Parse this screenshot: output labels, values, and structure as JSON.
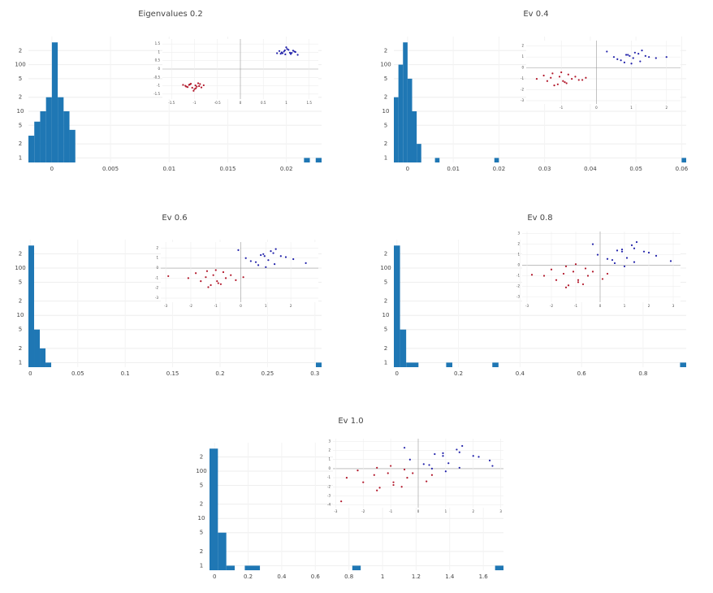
{
  "chart_data": [
    {
      "type": "histogram",
      "title": "Eigenvalues 0.2",
      "log_y": true,
      "grid": true,
      "color": "#1f77b4",
      "bins": [
        -0.002,
        -0.0015,
        -0.001,
        -0.0005,
        0,
        0.0005,
        0.001,
        0.0015,
        0.002,
        0.0215,
        0.022,
        0.0225,
        0.023
      ],
      "counts": [
        3,
        6,
        10,
        20,
        300,
        20,
        10,
        4,
        0,
        1,
        0,
        1
      ],
      "xlim": [
        -0.002,
        0.023
      ],
      "xticks": [
        0,
        0.005,
        0.01,
        0.015,
        0.02
      ],
      "ylim": [
        0.8,
        400
      ],
      "yticks": [
        1,
        2,
        5,
        10,
        {
          "value": 20,
          "label": "2"
        },
        {
          "value": 50,
          "label": "5"
        },
        100,
        {
          "value": 200,
          "label": "2"
        }
      ],
      "inset": {
        "type": "scatter",
        "grid": true,
        "xlim": [
          -1.7,
          1.7
        ],
        "ylim": [
          -1.8,
          1.8
        ],
        "xticks": [
          -1.5,
          -1,
          -0.5,
          0,
          0.5,
          1,
          1.5
        ],
        "yticks": [
          -1.5,
          -1,
          -0.5,
          0,
          0.5,
          1,
          1.5
        ],
        "series": [
          {
            "color": "#b2182b",
            "x": [
              -1.12,
              -0.95,
              -1.05,
              -0.88,
              -1.2,
              -1.0,
              -0.92,
              -1.15,
              -0.98,
              -1.08,
              -0.85,
              -1.25,
              -1.02,
              -0.9,
              -1.1,
              -0.97,
              -1.18,
              -0.8
            ],
            "y": [
              -0.95,
              -1.05,
              -1.12,
              -0.9,
              -1.0,
              -1.2,
              -0.85,
              -1.08,
              -0.98,
              -0.88,
              -1.1,
              -0.95,
              -1.3,
              -1.02,
              -0.92,
              -1.15,
              -1.05,
              -0.97
            ]
          },
          {
            "color": "#2222aa",
            "x": [
              1.12,
              0.95,
              1.05,
              0.88,
              1.2,
              1.0,
              0.92,
              1.15,
              0.98,
              1.08,
              0.85,
              1.25,
              1.02,
              0.9,
              1.1,
              0.97,
              1.18,
              0.8
            ],
            "y": [
              0.97,
              1.05,
              1.15,
              0.92,
              1.02,
              1.3,
              0.95,
              1.1,
              0.88,
              0.98,
              1.08,
              0.85,
              1.2,
              1.0,
              0.9,
              1.12,
              1.05,
              0.95
            ]
          }
        ]
      }
    },
    {
      "type": "histogram",
      "title": "Ev 0.4",
      "log_y": true,
      "grid": true,
      "color": "#1f77b4",
      "bins": [
        -0.003,
        -0.002,
        -0.001,
        0,
        0.001,
        0.002,
        0.003,
        0.006,
        0.007,
        0.019,
        0.02,
        0.06,
        0.061
      ],
      "counts": [
        20,
        100,
        300,
        50,
        10,
        2,
        0,
        1,
        0,
        1,
        0,
        1
      ],
      "xlim": [
        -0.003,
        0.061
      ],
      "xticks": [
        0,
        0.01,
        0.02,
        0.03,
        0.04,
        0.05,
        0.06
      ],
      "ylim": [
        0.8,
        400
      ],
      "yticks": [
        1,
        2,
        5,
        10,
        {
          "value": 20,
          "label": "2"
        },
        {
          "value": 50,
          "label": "5"
        },
        100,
        {
          "value": 200,
          "label": "2"
        }
      ],
      "inset": {
        "type": "scatter",
        "grid": true,
        "xlim": [
          -2,
          2.4
        ],
        "ylim": [
          -3.3,
          2.5
        ],
        "xticks": [
          -1,
          0,
          1,
          2
        ],
        "yticks": [
          -3,
          -2,
          -1,
          0,
          1,
          2
        ],
        "series": [
          {
            "color": "#b2182b",
            "x": [
              -1.4,
              -0.6,
              -1.1,
              -0.8,
              -1.7,
              -0.9,
              -1.3,
              -0.5,
              -1.0,
              -1.2,
              -0.7,
              -1.5,
              -0.95,
              -0.3,
              -1.25,
              -0.85,
              -1.05,
              -0.4
            ],
            "y": [
              -1.2,
              -0.8,
              -1.5,
              -0.6,
              -1.0,
              -1.3,
              -0.9,
              -1.1,
              -0.4,
              -1.6,
              -1.0,
              -0.7,
              -1.2,
              -0.9,
              -0.5,
              -1.4,
              -0.8,
              -1.1
            ]
          },
          {
            "color": "#2222aa",
            "x": [
              1.4,
              0.6,
              1.1,
              0.8,
              1.7,
              0.9,
              1.3,
              0.5,
              1.0,
              1.2,
              0.7,
              1.5,
              0.95,
              0.3,
              1.25,
              0.85,
              1.05,
              2.0
            ],
            "y": [
              1.1,
              0.8,
              1.4,
              0.5,
              0.9,
              1.2,
              1.6,
              1.0,
              0.4,
              1.3,
              0.7,
              1.0,
              1.1,
              1.5,
              0.6,
              1.2,
              0.9,
              1.0
            ]
          }
        ]
      }
    },
    {
      "type": "histogram",
      "title": "Ev 0.6",
      "log_y": true,
      "grid": true,
      "color": "#1f77b4",
      "bins": [
        -0.002,
        0.004,
        0.01,
        0.016,
        0.022,
        0.301,
        0.307
      ],
      "counts": [
        300,
        5,
        2,
        1,
        0,
        1
      ],
      "xlim": [
        -0.002,
        0.307
      ],
      "xticks": [
        0,
        0.05,
        0.1,
        0.15,
        0.2,
        0.25,
        0.3
      ],
      "ylim": [
        0.8,
        400
      ],
      "yticks": [
        1,
        2,
        5,
        10,
        {
          "value": 20,
          "label": "2"
        },
        {
          "value": 50,
          "label": "5"
        },
        100,
        {
          "value": 200,
          "label": "2"
        }
      ],
      "inset": {
        "type": "scatter",
        "grid": true,
        "xlim": [
          -3.2,
          3.1
        ],
        "ylim": [
          -3.4,
          2.6
        ],
        "xticks": [
          -3,
          -2,
          -1,
          0,
          1,
          2
        ],
        "yticks": [
          -3,
          -2,
          -1,
          0,
          1,
          2
        ],
        "series": [
          {
            "color": "#b2182b",
            "x": [
              -1.6,
              -0.4,
              -1.2,
              -0.7,
              -2.1,
              -0.9,
              -1.4,
              -0.2,
              -1.0,
              -1.3,
              -0.6,
              -1.8,
              -0.95,
              0.1,
              -1.35,
              -0.8,
              -1.1,
              -2.9
            ],
            "y": [
              -1.3,
              -0.7,
              -1.7,
              -0.4,
              -1.0,
              -1.5,
              -0.9,
              -1.2,
              -0.2,
              -1.9,
              -1.0,
              -0.5,
              -1.3,
              -0.9,
              -0.3,
              -1.6,
              -0.7,
              -0.8
            ]
          },
          {
            "color": "#2222aa",
            "x": [
              1.6,
              0.4,
              1.2,
              0.7,
              2.1,
              0.9,
              1.4,
              0.2,
              1.0,
              1.3,
              0.6,
              1.8,
              0.95,
              -0.1,
              1.35,
              0.8,
              1.1,
              2.6
            ],
            "y": [
              1.2,
              0.7,
              1.7,
              0.3,
              0.9,
              1.4,
              1.9,
              1.0,
              0.1,
              1.5,
              0.6,
              1.1,
              1.2,
              1.8,
              0.4,
              1.3,
              0.8,
              0.5
            ]
          }
        ]
      }
    },
    {
      "type": "histogram",
      "title": "Ev 0.8",
      "log_y": true,
      "grid": true,
      "color": "#1f77b4",
      "bins": [
        -0.01,
        0.01,
        0.03,
        0.07,
        0.16,
        0.18,
        0.31,
        0.33,
        0.92,
        0.94
      ],
      "counts": [
        300,
        5,
        1,
        0,
        1,
        0,
        1,
        0,
        1
      ],
      "xlim": [
        -0.01,
        0.94
      ],
      "xticks": [
        0,
        0.2,
        0.4,
        0.6,
        0.8
      ],
      "ylim": [
        0.8,
        400
      ],
      "yticks": [
        1,
        2,
        5,
        10,
        {
          "value": 20,
          "label": "2"
        },
        {
          "value": 50,
          "label": "5"
        },
        100,
        {
          "value": 200,
          "label": "2"
        }
      ],
      "inset": {
        "type": "scatter",
        "grid": true,
        "xlim": [
          -3.2,
          3.3
        ],
        "ylim": [
          -3.5,
          3.2
        ],
        "xticks": [
          -3,
          -2,
          -1,
          0,
          1,
          2,
          3
        ],
        "yticks": [
          -3,
          -2,
          -1,
          0,
          1,
          2,
          3
        ],
        "series": [
          {
            "color": "#b2182b",
            "x": [
              -1.8,
              -0.3,
              -1.3,
              -0.6,
              -2.3,
              -0.9,
              -1.5,
              0.1,
              -1.0,
              -1.4,
              -0.5,
              -2.0,
              -0.9,
              0.3,
              -1.4,
              -0.7,
              -1.1,
              -2.8
            ],
            "y": [
              -1.4,
              -0.6,
              -1.9,
              -0.3,
              -1.0,
              -1.6,
              -0.8,
              -1.3,
              0.1,
              -2.1,
              -1.0,
              -0.4,
              -1.4,
              -0.8,
              -0.1,
              -1.8,
              -0.6,
              -0.9
            ]
          },
          {
            "color": "#2222aa",
            "x": [
              1.8,
              0.3,
              1.3,
              0.6,
              2.3,
              0.9,
              1.5,
              -0.1,
              1.0,
              1.4,
              0.5,
              2.0,
              0.9,
              -0.3,
              1.4,
              0.7,
              1.1,
              2.9
            ],
            "y": [
              1.3,
              0.6,
              1.9,
              0.2,
              0.9,
              1.5,
              2.2,
              1.0,
              -0.1,
              1.6,
              0.5,
              1.2,
              1.3,
              2.0,
              0.3,
              1.4,
              0.7,
              0.4
            ]
          }
        ]
      }
    },
    {
      "type": "histogram",
      "title": "Ev 1.0",
      "log_y": true,
      "grid": true,
      "color": "#1f77b4",
      "bins": [
        -0.03,
        0.02,
        0.07,
        0.12,
        0.18,
        0.27,
        0.82,
        0.87,
        1.67,
        1.72
      ],
      "counts": [
        300,
        5,
        1,
        0,
        1,
        0,
        1,
        0,
        1
      ],
      "xlim": [
        -0.03,
        1.72
      ],
      "xticks": [
        0,
        0.2,
        0.4,
        0.6,
        0.8,
        1,
        1.2,
        1.4,
        1.6
      ],
      "ylim": [
        0.8,
        400
      ],
      "yticks": [
        1,
        2,
        5,
        10,
        {
          "value": 20,
          "label": "2"
        },
        {
          "value": 50,
          "label": "5"
        },
        100,
        {
          "value": 200,
          "label": "2"
        }
      ],
      "inset": {
        "type": "scatter",
        "grid": true,
        "xlim": [
          -3.1,
          3.1
        ],
        "ylim": [
          -4.3,
          3.3
        ],
        "xticks": [
          -3,
          -2,
          -1,
          0,
          1,
          2,
          3
        ],
        "yticks": [
          -4,
          -3,
          -2,
          -1,
          0,
          1,
          2,
          3
        ],
        "series": [
          {
            "color": "#b2182b",
            "x": [
              -2.0,
              -0.2,
              -1.4,
              -0.5,
              -2.6,
              -0.9,
              -1.6,
              0.3,
              -1.0,
              -1.5,
              -0.4,
              -2.2,
              -0.9,
              0.5,
              -1.5,
              -0.6,
              -1.1,
              -2.8
            ],
            "y": [
              -1.5,
              -0.5,
              -2.1,
              -0.1,
              -1.0,
              -1.8,
              -0.7,
              -1.4,
              0.3,
              -2.4,
              -1.0,
              -0.2,
              -1.5,
              -0.7,
              0.1,
              -2.0,
              -0.5,
              -3.6
            ]
          },
          {
            "color": "#2222aa",
            "x": [
              2.0,
              0.2,
              1.4,
              0.5,
              2.6,
              0.9,
              1.6,
              -0.3,
              1.0,
              1.5,
              0.4,
              2.2,
              0.9,
              -0.5,
              1.5,
              0.6,
              1.1,
              2.7
            ],
            "y": [
              1.4,
              0.5,
              2.1,
              0.0,
              0.9,
              1.7,
              2.5,
              1.0,
              -0.3,
              1.8,
              0.4,
              1.3,
              1.4,
              2.3,
              0.1,
              1.6,
              0.6,
              0.3
            ]
          }
        ]
      }
    }
  ]
}
